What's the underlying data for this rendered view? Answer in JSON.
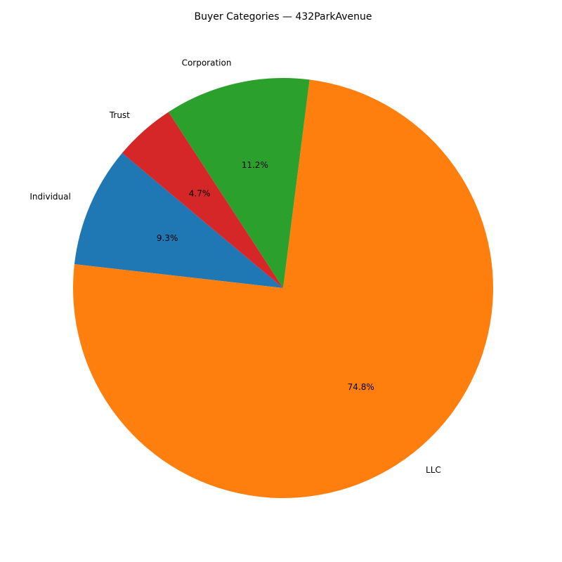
{
  "chart_data": {
    "type": "pie",
    "title": "Buyer Categories — 432ParkAvenue",
    "slices": [
      {
        "label": "Individual",
        "value": 9.3,
        "pct_label": "9.3%",
        "color": "#1f77b4"
      },
      {
        "label": "LLC",
        "value": 74.8,
        "pct_label": "74.8%",
        "color": "#ff7f0e"
      },
      {
        "label": "Corporation",
        "value": 11.2,
        "pct_label": "11.2%",
        "color": "#2ca02c"
      },
      {
        "label": "Trust",
        "value": 4.7,
        "pct_label": "4.7%",
        "color": "#d62728"
      }
    ],
    "start_angle_deg": 140,
    "direction": "counterclockwise"
  }
}
